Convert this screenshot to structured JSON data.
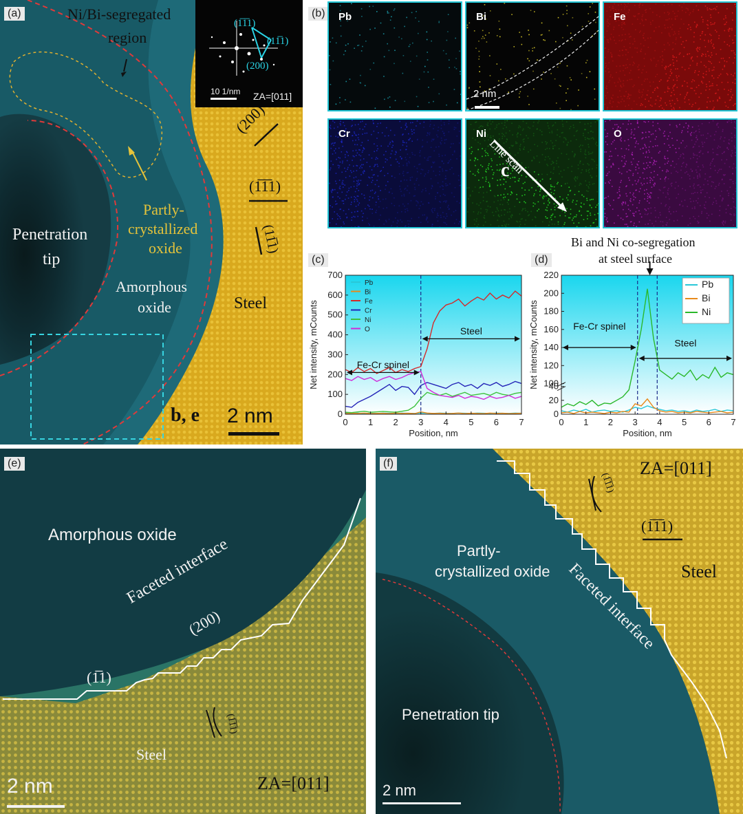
{
  "panel_a": {
    "label": "(a)",
    "ni_bi_region": "Ni/Bi-segregated",
    "ni_bi_region_2": "region",
    "partly_1": "Partly-",
    "partly_2": "crystallized",
    "partly_3": "oxide",
    "penetration_1": "Penetration",
    "penetration_2": "tip",
    "amorphous_1": "Amorphous",
    "amorphous_2": "oxide",
    "steel": "Steel",
    "box_label": "b, e",
    "scale": "2 nm",
    "plane_200": "(200)",
    "plane_1m11": "(1̅1̅1)",
    "plane_11m1": "(11̅1)",
    "fft": {
      "p1": "(1̅1̅1)",
      "p2": "(11̅1)",
      "p3": "(200)",
      "scale": "10 1/nm",
      "za": "ZA=[011]"
    }
  },
  "panel_b": {
    "label": "(b)",
    "scale": "2 nm",
    "line_scan": "Line scan",
    "line_scan_letter": "c",
    "tiles": [
      {
        "element": "Pb",
        "color": "#1a9aa8"
      },
      {
        "element": "Bi",
        "color": "#d8c828"
      },
      {
        "element": "Fe",
        "color": "#d01818"
      },
      {
        "element": "Cr",
        "color": "#1c28c8"
      },
      {
        "element": "Ni",
        "color": "#22c822"
      },
      {
        "element": "O",
        "color": "#b020b8"
      }
    ]
  },
  "panel_c": {
    "label": "(c)",
    "region_left": "Fe-Cr spinel",
    "region_right": "Steel",
    "chart_data": {
      "type": "line",
      "xlabel": "Position, nm",
      "ylabel": "Net intensity, mCounts",
      "xlim": [
        0,
        7
      ],
      "ylim": [
        0,
        700
      ],
      "xticks": [
        "0",
        "1",
        "2",
        "3",
        "4",
        "5",
        "6",
        "7"
      ],
      "yticks": [
        "0",
        "100",
        "200",
        "300",
        "400",
        "500",
        "600",
        "700"
      ],
      "legend_position": "top-left",
      "x": [
        0,
        0.25,
        0.5,
        0.75,
        1,
        1.25,
        1.5,
        1.75,
        2,
        2.25,
        2.5,
        2.75,
        3,
        3.25,
        3.5,
        3.75,
        4,
        4.25,
        4.5,
        4.75,
        5,
        5.25,
        5.5,
        5.75,
        6,
        6.25,
        6.5,
        6.75,
        7
      ],
      "series": [
        {
          "name": "Pb",
          "color": "#29c7d8",
          "values": [
            5,
            4,
            6,
            3,
            5,
            4,
            6,
            5,
            4,
            6,
            5,
            4,
            6,
            5,
            4,
            6,
            5,
            4,
            6,
            5,
            4,
            6,
            5,
            4,
            6,
            5,
            4,
            6,
            5
          ]
        },
        {
          "name": "Bi",
          "color": "#e88a1a",
          "values": [
            3,
            5,
            4,
            6,
            3,
            4,
            5,
            3,
            6,
            4,
            5,
            3,
            12,
            6,
            4,
            5,
            3,
            4,
            6,
            3,
            5,
            4,
            3,
            6,
            4,
            5,
            3,
            4,
            5
          ]
        },
        {
          "name": "Fe",
          "color": "#d62828",
          "values": [
            225,
            210,
            235,
            215,
            230,
            205,
            220,
            235,
            210,
            225,
            215,
            230,
            240,
            330,
            460,
            520,
            550,
            560,
            580,
            545,
            570,
            590,
            575,
            610,
            580,
            600,
            585,
            620,
            595
          ]
        },
        {
          "name": "Cr",
          "color": "#2424b8",
          "values": [
            40,
            35,
            60,
            75,
            90,
            110,
            130,
            150,
            120,
            140,
            135,
            100,
            145,
            160,
            150,
            140,
            130,
            150,
            160,
            140,
            150,
            130,
            155,
            145,
            160,
            140,
            150,
            165,
            155
          ]
        },
        {
          "name": "Ni",
          "color": "#3cc23c",
          "values": [
            10,
            8,
            12,
            15,
            10,
            12,
            14,
            12,
            10,
            15,
            20,
            40,
            80,
            110,
            100,
            95,
            105,
            90,
            100,
            110,
            95,
            100,
            105,
            95,
            110,
            100,
            95,
            105,
            110
          ]
        },
        {
          "name": "O",
          "color": "#d02ad8",
          "values": [
            180,
            170,
            190,
            175,
            185,
            165,
            180,
            190,
            175,
            185,
            200,
            210,
            215,
            130,
            110,
            95,
            90,
            85,
            95,
            80,
            90,
            85,
            75,
            90,
            80,
            85,
            95,
            80,
            90
          ]
        }
      ]
    }
  },
  "panel_d": {
    "label": "(d)",
    "title_1": "Bi and Ni co-segregation",
    "title_2": "at steel surface",
    "region_left": "Fe-Cr spinel",
    "region_right": "Steel",
    "chart_data": {
      "type": "line",
      "xlabel": "Position, nm",
      "ylabel": "Net intensity, mCounts",
      "xlim": [
        0,
        7
      ],
      "ylim_upper": [
        100,
        220
      ],
      "ylim_lower": [
        0,
        40
      ],
      "xticks": [
        "0",
        "1",
        "2",
        "3",
        "4",
        "5",
        "6",
        "7"
      ],
      "yticks_upper": [
        "100",
        "120",
        "140",
        "160",
        "180",
        "200",
        "220"
      ],
      "yticks_lower": [
        "0",
        "20",
        "40"
      ],
      "legend_position": "top-right",
      "x": [
        0,
        0.25,
        0.5,
        0.75,
        1,
        1.25,
        1.5,
        1.75,
        2,
        2.25,
        2.5,
        2.75,
        3,
        3.25,
        3.5,
        3.75,
        4,
        4.25,
        4.5,
        4.75,
        5,
        5.25,
        5.5,
        5.75,
        6,
        6.25,
        6.5,
        6.75,
        7
      ],
      "series": [
        {
          "name": "Pb",
          "color": "#29c7d8",
          "values": [
            5,
            3,
            6,
            4,
            7,
            3,
            5,
            6,
            4,
            5,
            3,
            6,
            10,
            8,
            12,
            9,
            7,
            5,
            6,
            4,
            5,
            3,
            6,
            4,
            5,
            7,
            4,
            6,
            5
          ]
        },
        {
          "name": "Bi",
          "color": "#e88a1a",
          "values": [
            2,
            3,
            1,
            4,
            2,
            3,
            2,
            1,
            3,
            2,
            4,
            3,
            15,
            12,
            22,
            10,
            5,
            3,
            4,
            2,
            3,
            2,
            4,
            3,
            2,
            3,
            4,
            2,
            3
          ]
        },
        {
          "name": "Ni",
          "color": "#2ab82a",
          "values": [
            10,
            15,
            12,
            18,
            14,
            20,
            12,
            16,
            15,
            20,
            25,
            35,
            125,
            160,
            205,
            150,
            115,
            110,
            105,
            112,
            108,
            115,
            104,
            110,
            106,
            118,
            107,
            112,
            110
          ]
        }
      ]
    }
  },
  "panel_e": {
    "label": "(e)",
    "amorphous": "Amorphous oxide",
    "interface": "Faceted interface",
    "plane_200": "(200)",
    "plane_1m11": "(1̅1)",
    "plane_11": "(1̅1̅1)",
    "steel": "Steel",
    "za": "ZA=[011]",
    "scale": "2 nm"
  },
  "panel_f": {
    "label": "(f)",
    "za": "ZA=[011]",
    "plane_1m11": "(1̅1̅1)",
    "plane_11": "(1̅1̅1)",
    "partly_1": "Partly-",
    "partly_2": "crystallized oxide",
    "interface": "Faceted interface",
    "steel": "Steel",
    "penetration": "Penetration tip",
    "scale": "2 nm"
  }
}
